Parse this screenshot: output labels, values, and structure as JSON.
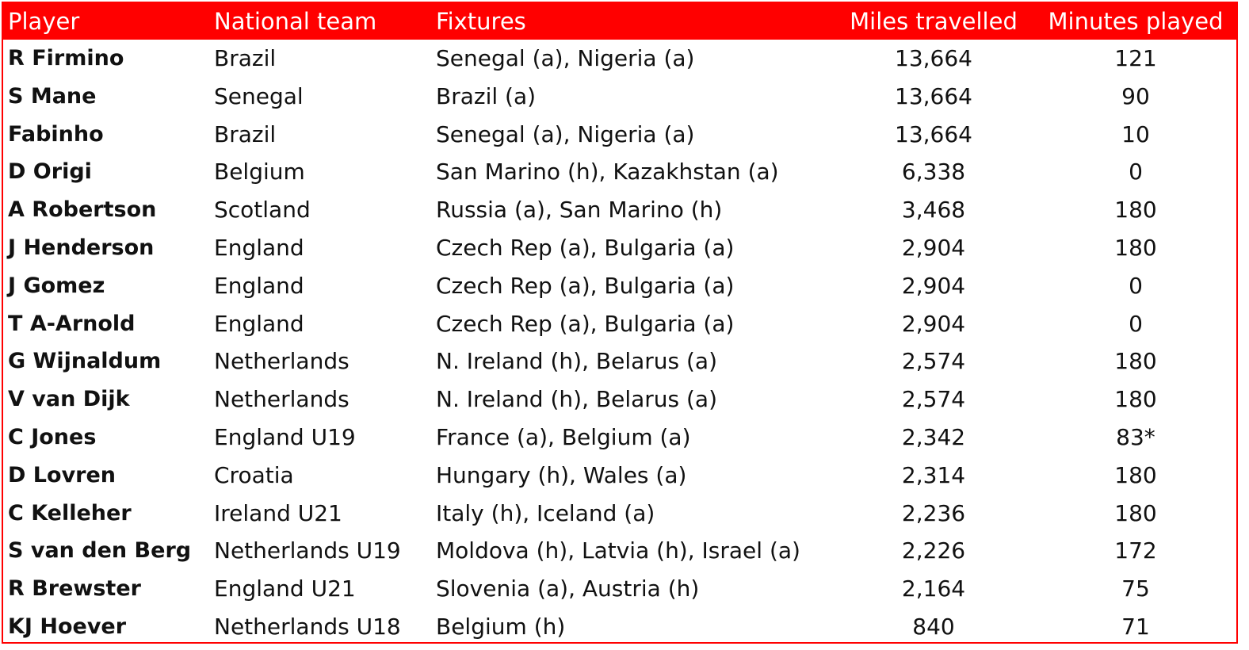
{
  "table": {
    "header": [
      "Player",
      "National team",
      "Fixtures",
      "Miles travelled",
      "Minutes played"
    ],
    "rows": [
      [
        "R Firmino",
        "Brazil",
        "Senegal (a), Nigeria (a)",
        "13,664",
        "121"
      ],
      [
        "S Mane",
        "Senegal",
        "Brazil (a)",
        "13,664",
        "90"
      ],
      [
        "Fabinho",
        "Brazil",
        "Senegal (a), Nigeria (a)",
        "13,664",
        "10"
      ],
      [
        "D Origi",
        "Belgium",
        "San Marino (h), Kazakhstan (a)",
        "6,338",
        "0"
      ],
      [
        "A Robertson",
        "Scotland",
        "Russia (a), San Marino (h)",
        "3,468",
        "180"
      ],
      [
        "J Henderson",
        "England",
        "Czech Rep (a), Bulgaria (a)",
        "2,904",
        "180"
      ],
      [
        "J Gomez",
        "England",
        "Czech Rep (a), Bulgaria (a)",
        "2,904",
        "0"
      ],
      [
        "T A-Arnold",
        "England",
        "Czech Rep (a), Bulgaria (a)",
        "2,904",
        "0"
      ],
      [
        "G Wijnaldum",
        "Netherlands",
        "N. Ireland (h), Belarus (a)",
        "2,574",
        "180"
      ],
      [
        "V van Dijk",
        "Netherlands",
        "N. Ireland (h), Belarus (a)",
        "2,574",
        "180"
      ],
      [
        "C Jones",
        "England U19",
        "France (a), Belgium (a)",
        "2,342",
        "83*"
      ],
      [
        "D Lovren",
        "Croatia",
        "Hungary (h), Wales (a)",
        "2,314",
        "180"
      ],
      [
        "C Kelleher",
        "Ireland U21",
        "Italy (h), Iceland (a)",
        "2,236",
        "180"
      ],
      [
        "S van den Berg",
        "Netherlands U19",
        "Moldova (h), Latvia (h), Israel (a)",
        "2,226",
        "172"
      ],
      [
        "R Brewster",
        "England U21",
        "Slovenia (a), Austria (h)",
        "2,164",
        "75"
      ],
      [
        "KJ Hoever",
        "Netherlands U18",
        "Belgium (h)",
        "840",
        "71"
      ]
    ]
  }
}
